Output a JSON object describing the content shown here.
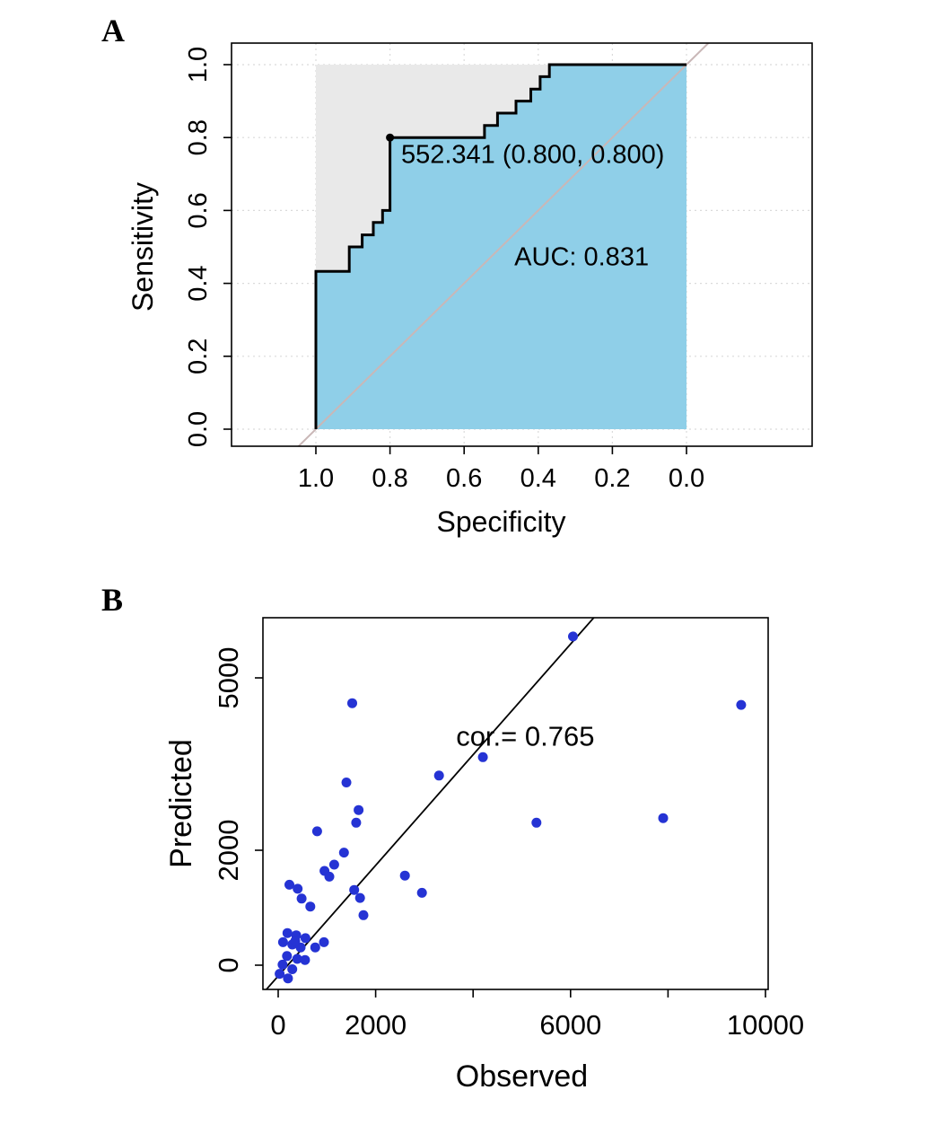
{
  "figure": {
    "background": "#FFFFFF"
  },
  "panels": {
    "a": {
      "label": "A"
    },
    "b": {
      "label": "B"
    }
  },
  "chart_data": [
    {
      "id": "roc",
      "type": "line",
      "subtype": "roc-curve",
      "panel": "A",
      "xlabel": "Specificity",
      "ylabel": "Sensitivity",
      "x_axis_reversed": true,
      "xlim": [
        1.0,
        0.0
      ],
      "ylim": [
        0.0,
        1.0
      ],
      "grid": "dotted",
      "x_ticks": [
        1.0,
        0.8,
        0.6,
        0.4,
        0.2,
        0.0
      ],
      "x_tick_labels": [
        "1.0",
        "0.8",
        "0.6",
        "0.4",
        "0.2",
        "0.0"
      ],
      "y_ticks": [
        0.0,
        0.2,
        0.4,
        0.6,
        0.8,
        1.0
      ],
      "y_tick_labels": [
        "0.0",
        "0.2",
        "0.4",
        "0.6",
        "0.8",
        "1.0"
      ],
      "roc_curve_spec_sens": [
        [
          1.0,
          0.0
        ],
        [
          1.0,
          0.433
        ],
        [
          0.91,
          0.433
        ],
        [
          0.91,
          0.5
        ],
        [
          0.875,
          0.5
        ],
        [
          0.875,
          0.533
        ],
        [
          0.845,
          0.533
        ],
        [
          0.845,
          0.567
        ],
        [
          0.82,
          0.567
        ],
        [
          0.82,
          0.6
        ],
        [
          0.8,
          0.6
        ],
        [
          0.8,
          0.8
        ],
        [
          0.545,
          0.8
        ],
        [
          0.545,
          0.833
        ],
        [
          0.51,
          0.833
        ],
        [
          0.51,
          0.867
        ],
        [
          0.46,
          0.867
        ],
        [
          0.46,
          0.9
        ],
        [
          0.42,
          0.9
        ],
        [
          0.42,
          0.933
        ],
        [
          0.395,
          0.933
        ],
        [
          0.395,
          0.967
        ],
        [
          0.37,
          0.967
        ],
        [
          0.37,
          1.0
        ],
        [
          0.0,
          1.0
        ]
      ],
      "threshold_annotation": {
        "label": "552.341 (0.800, 0.800)",
        "threshold": 552.341,
        "specificity": 0.8,
        "sensitivity": 0.8,
        "text_pos": [
          0.77,
          0.73
        ]
      },
      "auc_annotation": {
        "label": "AUC: 0.831",
        "value": 0.831,
        "text_pos": [
          0.283,
          0.45
        ]
      },
      "diagonal_reference_line": true,
      "colors": {
        "auc_fill": "#8FCFE8",
        "upper_fill": "#E9E9E9",
        "curve": "#000000",
        "diagonal": "#C9B7B7",
        "grid": "#DADADA"
      }
    },
    {
      "id": "scatter",
      "type": "scatter",
      "panel": "B",
      "xlabel": "Observed",
      "ylabel": "Predicted",
      "xlim": [
        -450,
        10300
      ],
      "ylim": [
        -650,
        6100
      ],
      "x_ticks": [
        0,
        2000,
        4000,
        6000,
        8000,
        10000
      ],
      "x_tick_labels": [
        "0",
        "2000",
        "",
        "6000",
        "",
        "10000"
      ],
      "y_ticks": [
        0,
        2000,
        5000
      ],
      "y_tick_labels": [
        "0",
        "2000",
        "5000"
      ],
      "points": [
        [
          6050,
          5720
        ],
        [
          9500,
          4530
        ],
        [
          1520,
          4560
        ],
        [
          4200,
          3620
        ],
        [
          3300,
          3300
        ],
        [
          1400,
          3180
        ],
        [
          1650,
          2700
        ],
        [
          1600,
          2480
        ],
        [
          5300,
          2480
        ],
        [
          7900,
          2560
        ],
        [
          800,
          2330
        ],
        [
          1350,
          1960
        ],
        [
          1150,
          1750
        ],
        [
          950,
          1640
        ],
        [
          2600,
          1560
        ],
        [
          1050,
          1540
        ],
        [
          230,
          1400
        ],
        [
          400,
          1330
        ],
        [
          1560,
          1310
        ],
        [
          2950,
          1260
        ],
        [
          480,
          1160
        ],
        [
          1680,
          1170
        ],
        [
          660,
          1020
        ],
        [
          1750,
          870
        ],
        [
          190,
          560
        ],
        [
          370,
          520
        ],
        [
          560,
          470
        ],
        [
          100,
          400
        ],
        [
          290,
          360
        ],
        [
          460,
          310
        ],
        [
          760,
          310
        ],
        [
          940,
          400
        ],
        [
          180,
          160
        ],
        [
          390,
          110
        ],
        [
          90,
          10
        ],
        [
          550,
          90
        ],
        [
          290,
          -70
        ],
        [
          30,
          -150
        ],
        [
          200,
          -230
        ],
        [
          350,
          420
        ]
      ],
      "fit_line": {
        "x1": -240,
        "y1": -420,
        "x2": 6480,
        "y2": 6050
      },
      "annotation": {
        "label": "cor.= 0.765",
        "value": 0.765,
        "text_pos": [
          3650,
          3820
        ]
      },
      "colors": {
        "point": "#2533D4",
        "line": "#000000"
      }
    }
  ]
}
